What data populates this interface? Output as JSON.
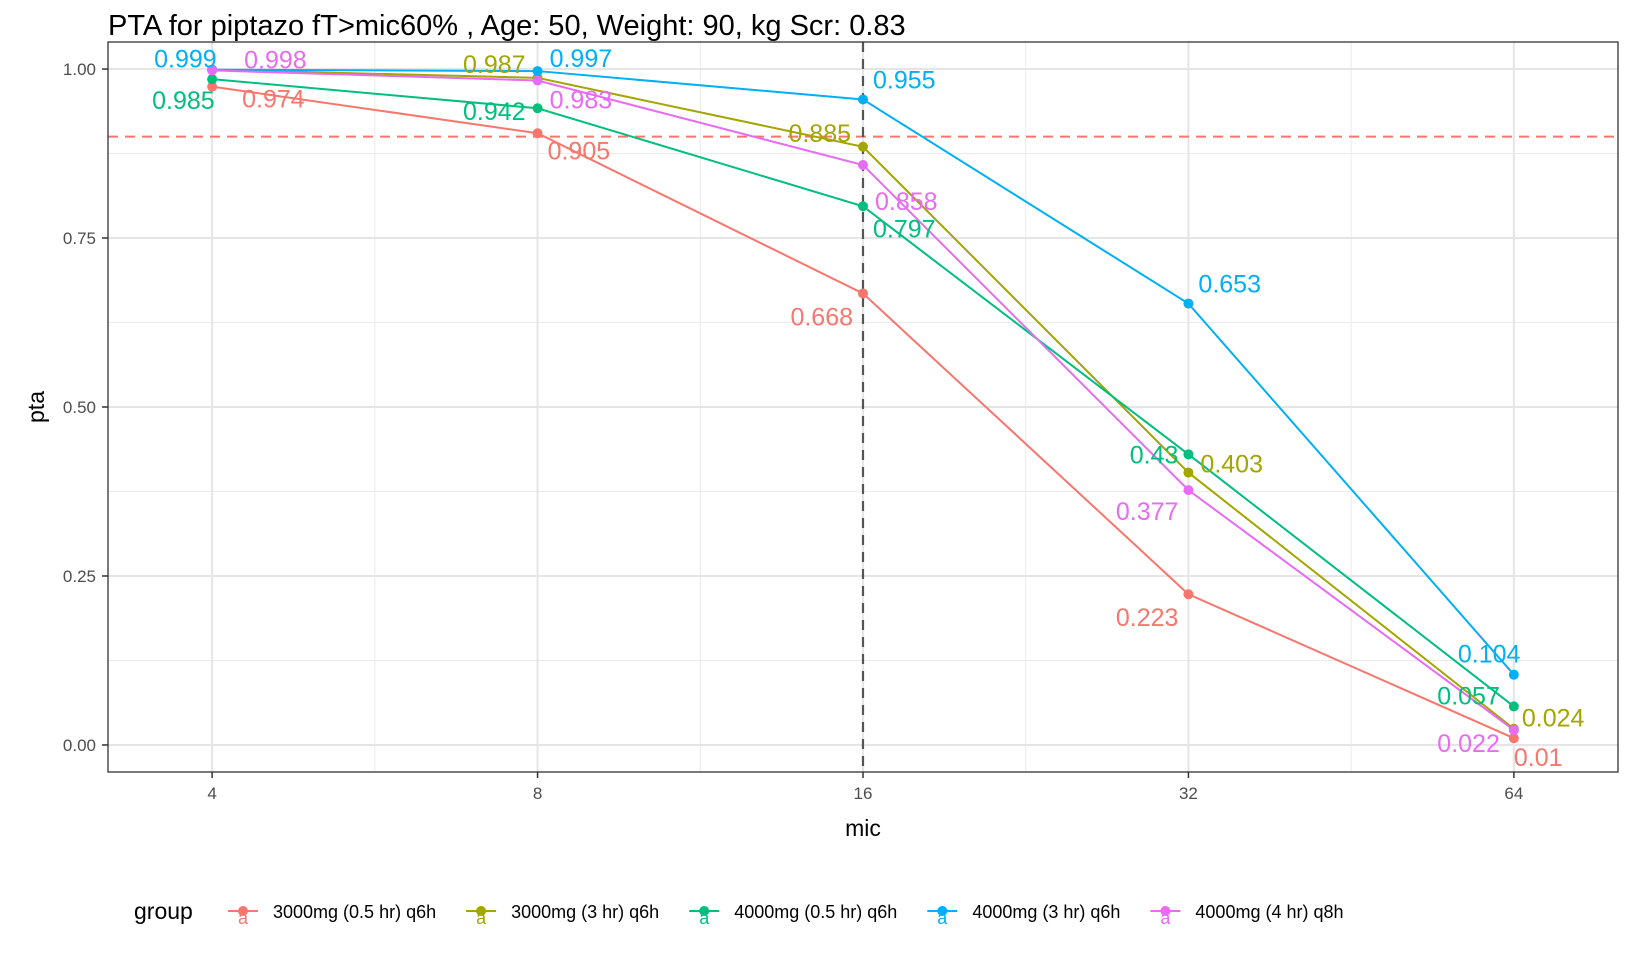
{
  "chart_data": {
    "type": "line",
    "title": "PTA for piptazo fT>mic60% , Age: 50, Weight: 90, kg Scr: 0.83",
    "xlabel": "mic",
    "ylabel": "pta",
    "x_scale": "log2",
    "x": [
      4,
      8,
      16,
      32,
      64
    ],
    "x_tick_labels": [
      "4",
      "8",
      "16",
      "32",
      "64"
    ],
    "ylim": [
      -0.04,
      1.04
    ],
    "y_ticks": [
      0,
      0.25,
      0.5,
      0.75,
      1.0
    ],
    "y_tick_labels": [
      "0.00",
      "0.25",
      "0.50",
      "0.75",
      "1.00"
    ],
    "grid": true,
    "hline": {
      "y": 0.9,
      "color": "#F8766D",
      "style": "dashed"
    },
    "vline": {
      "x": 16,
      "color": "#555555",
      "style": "dashed"
    },
    "legend_title": "group",
    "legend_position": "bottom",
    "series": [
      {
        "name": "3000mg (0.5 hr) q6h",
        "color": "#F8766D",
        "values": [
          0.974,
          0.905,
          0.668,
          0.223,
          0.01
        ],
        "labels": [
          "0.974",
          "0.905",
          "0.668",
          "0.223",
          "0.01"
        ]
      },
      {
        "name": "3000mg (3 hr) q6h",
        "color": "#A3A500",
        "values": [
          0.999,
          0.987,
          0.885,
          0.403,
          0.024
        ],
        "labels": [
          "",
          "0.987",
          "0.885",
          "0.403",
          "0.024"
        ]
      },
      {
        "name": "4000mg (0.5 hr) q6h",
        "color": "#00BF7D",
        "values": [
          0.985,
          0.942,
          0.797,
          0.43,
          0.057
        ],
        "labels": [
          "0.985",
          "0.942",
          "0.797",
          "0.43",
          "0.057"
        ]
      },
      {
        "name": "4000mg (3 hr) q6h",
        "color": "#00B0F6",
        "values": [
          0.999,
          0.997,
          0.955,
          0.653,
          0.104
        ],
        "labels": [
          "0.999",
          "0.997",
          "0.955",
          "0.653",
          "0.104"
        ]
      },
      {
        "name": "4000mg (4 hr) q8h",
        "color": "#E76BF3",
        "values": [
          0.998,
          0.983,
          0.858,
          0.377,
          0.022
        ],
        "labels": [
          "0.998",
          "0.983",
          "0.858",
          "0.377",
          "0.022"
        ]
      }
    ]
  }
}
